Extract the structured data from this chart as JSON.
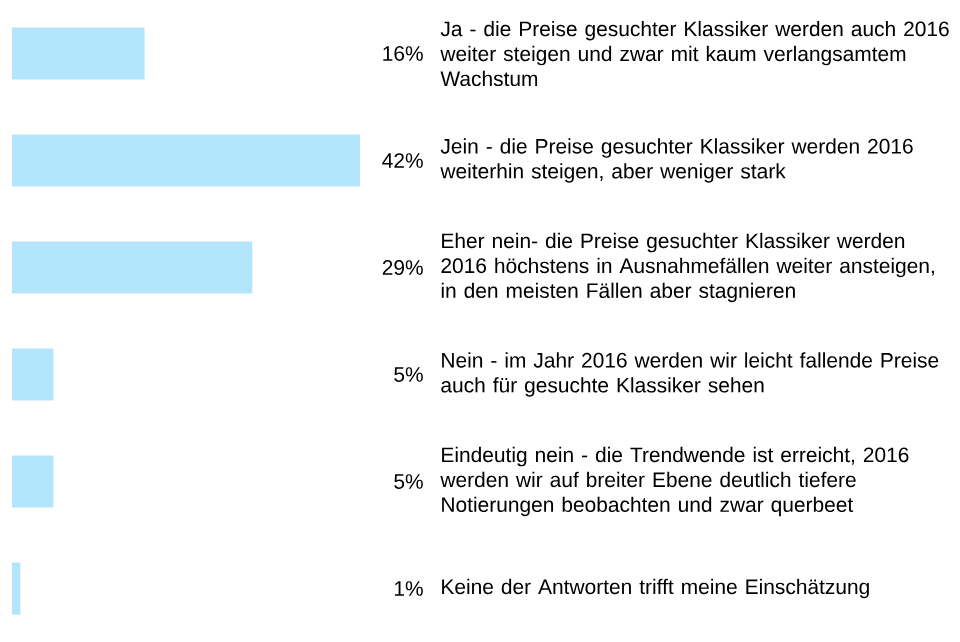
{
  "chart_data": {
    "type": "bar",
    "orientation": "horizontal",
    "categories": [
      "Ja - die Preise gesuchter Klassiker werden auch 2016 weiter steigen und zwar mit kaum verlangsamtem Wachstum",
      "Jein - die Preise gesuchter Klassiker werden 2016 weiterhin steigen, aber weniger stark",
      "Eher nein- die Preise gesuchter Klassiker werden 2016 höchstens in Ausnahmefällen weiter ansteigen, in den meisten Fällen aber stagnieren",
      "Nein - im Jahr 2016 werden wir leicht fallende Preise auch für gesuchte Klassiker sehen",
      "Eindeutig nein - die Trendwende ist erreicht, 2016 werden wir auf breiter Ebene deutlich tiefere Notierungen beobachten und zwar querbeet",
      "Keine der Antworten trifft meine Einschätzung"
    ],
    "values": [
      16,
      42,
      29,
      5,
      5,
      1
    ],
    "value_labels": [
      "16%",
      "42%",
      "29%",
      "5%",
      "5%",
      "1%"
    ],
    "color": "#b3e5fc"
  }
}
